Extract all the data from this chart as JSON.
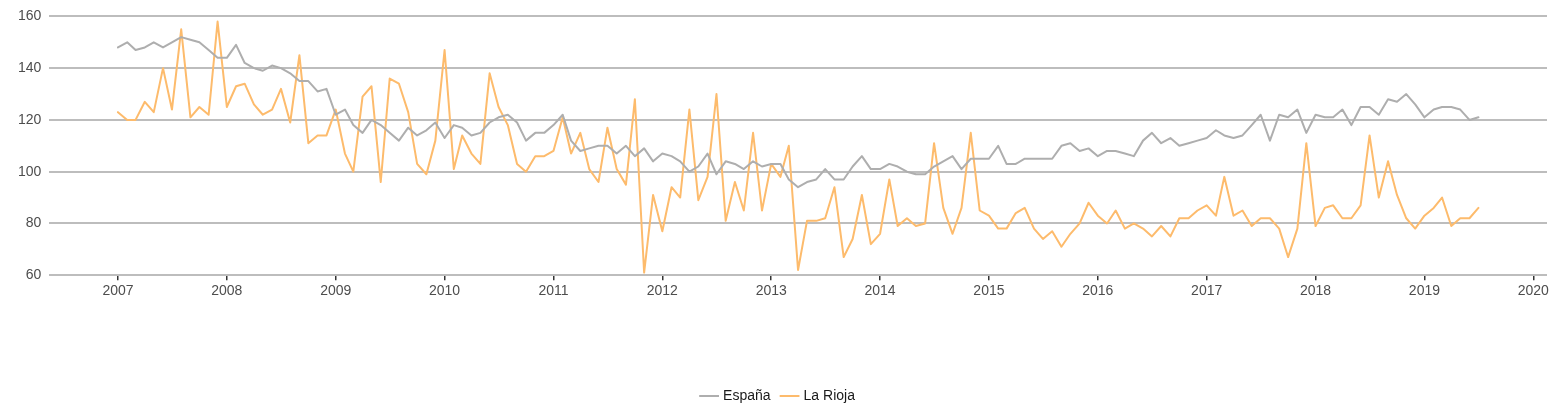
{
  "chart_data": {
    "type": "line",
    "x": [
      "2007-01",
      "2007-02",
      "2007-03",
      "2007-04",
      "2007-05",
      "2007-06",
      "2007-07",
      "2007-08",
      "2007-09",
      "2007-10",
      "2007-11",
      "2007-12",
      "2008-01",
      "2008-02",
      "2008-03",
      "2008-04",
      "2008-05",
      "2008-06",
      "2008-07",
      "2008-08",
      "2008-09",
      "2008-10",
      "2008-11",
      "2008-12",
      "2009-01",
      "2009-02",
      "2009-03",
      "2009-04",
      "2009-05",
      "2009-06",
      "2009-07",
      "2009-08",
      "2009-09",
      "2009-10",
      "2009-11",
      "2009-12",
      "2010-01",
      "2010-02",
      "2010-03",
      "2010-04",
      "2010-05",
      "2010-06",
      "2010-07",
      "2010-08",
      "2010-09",
      "2010-10",
      "2010-11",
      "2010-12",
      "2011-01",
      "2011-02",
      "2011-03",
      "2011-04",
      "2011-05",
      "2011-06",
      "2011-07",
      "2011-08",
      "2011-09",
      "2011-10",
      "2011-11",
      "2011-12",
      "2012-01",
      "2012-02",
      "2012-03",
      "2012-04",
      "2012-05",
      "2012-06",
      "2012-07",
      "2012-08",
      "2012-09",
      "2012-10",
      "2012-11",
      "2012-12",
      "2013-01",
      "2013-02",
      "2013-03",
      "2013-04",
      "2013-05",
      "2013-06",
      "2013-07",
      "2013-08",
      "2013-09",
      "2013-10",
      "2013-11",
      "2013-12",
      "2014-01",
      "2014-02",
      "2014-03",
      "2014-04",
      "2014-05",
      "2014-06",
      "2014-07",
      "2014-08",
      "2014-09",
      "2014-10",
      "2014-11",
      "2014-12",
      "2015-01",
      "2015-02",
      "2015-03",
      "2015-04",
      "2015-05",
      "2015-06",
      "2015-07",
      "2015-08",
      "2015-09",
      "2015-10",
      "2015-11",
      "2015-12",
      "2016-01",
      "2016-02",
      "2016-03",
      "2016-04",
      "2016-05",
      "2016-06",
      "2016-07",
      "2016-08",
      "2016-09",
      "2016-10",
      "2016-11",
      "2016-12",
      "2017-01",
      "2017-02",
      "2017-03",
      "2017-04",
      "2017-05",
      "2017-06",
      "2017-07",
      "2017-08",
      "2017-09",
      "2017-10",
      "2017-11",
      "2017-12",
      "2018-01",
      "2018-02",
      "2018-03",
      "2018-04",
      "2018-05",
      "2018-06",
      "2018-07",
      "2018-08",
      "2018-09",
      "2018-10",
      "2018-11",
      "2018-12",
      "2019-01",
      "2019-02",
      "2019-03",
      "2019-04",
      "2019-05",
      "2019-06",
      "2019-07"
    ],
    "series": [
      {
        "name": "España",
        "color": "#aeaeae",
        "values": [
          148,
          150,
          147,
          148,
          150,
          148,
          150,
          152,
          151,
          150,
          147,
          144,
          144,
          149,
          142,
          140,
          139,
          141,
          140,
          138,
          135,
          135,
          131,
          132,
          122,
          124,
          118,
          115,
          120,
          118,
          115,
          112,
          117,
          114,
          116,
          119,
          113,
          118,
          117,
          114,
          115,
          119,
          121,
          122,
          119,
          112,
          115,
          115,
          118,
          122,
          112,
          108,
          109,
          110,
          110,
          107,
          110,
          106,
          109,
          104,
          107,
          106,
          104,
          100,
          102,
          107,
          99,
          104,
          103,
          101,
          104,
          102,
          103,
          103,
          97,
          94,
          96,
          97,
          101,
          97,
          97,
          102,
          106,
          101,
          101,
          103,
          102,
          100,
          99,
          99,
          102,
          104,
          106,
          101,
          105,
          105,
          105,
          110,
          103,
          103,
          105,
          105,
          105,
          105,
          110,
          111,
          108,
          109,
          106,
          108,
          108,
          107,
          106,
          112,
          115,
          111,
          113,
          110,
          111,
          112,
          113,
          116,
          114,
          113,
          114,
          118,
          122,
          112,
          122,
          121,
          124,
          115,
          122,
          121,
          121,
          124,
          118,
          125,
          125,
          122,
          128,
          127,
          130,
          126,
          121,
          124,
          125,
          125,
          124,
          120,
          121
        ]
      },
      {
        "name": "La Rioja",
        "color": "#fdbb6c",
        "values": [
          123,
          120,
          120,
          127,
          123,
          140,
          124,
          155,
          121,
          125,
          122,
          158,
          125,
          133,
          134,
          126,
          122,
          124,
          132,
          119,
          145,
          111,
          114,
          114,
          124,
          107,
          100,
          129,
          133,
          96,
          136,
          134,
          123,
          103,
          99,
          112,
          147,
          101,
          114,
          107,
          103,
          138,
          125,
          118,
          103,
          100,
          106,
          106,
          108,
          121,
          107,
          115,
          101,
          96,
          117,
          101,
          95,
          128,
          61,
          91,
          77,
          94,
          90,
          124,
          89,
          98,
          130,
          81,
          96,
          85,
          115,
          85,
          103,
          98,
          110,
          62,
          81,
          81,
          82,
          94,
          67,
          74,
          91,
          72,
          76,
          97,
          79,
          82,
          79,
          80,
          111,
          86,
          76,
          86,
          115,
          85,
          83,
          78,
          78,
          84,
          86,
          78,
          74,
          77,
          71,
          76,
          80,
          88,
          83,
          80,
          85,
          78,
          80,
          78,
          75,
          79,
          75,
          82,
          82,
          85,
          87,
          83,
          98,
          83,
          85,
          79,
          82,
          82,
          78,
          67,
          78,
          111,
          79,
          86,
          87,
          82,
          82,
          87,
          114,
          90,
          104,
          91,
          82,
          78,
          83,
          86,
          90,
          79,
          82,
          82,
          86
        ]
      }
    ],
    "xlim": [
      "2006-05-16",
      "2020-02-16"
    ],
    "xticks": [
      "2007",
      "2008",
      "2009",
      "2010",
      "2011",
      "2012",
      "2013",
      "2014",
      "2015",
      "2016",
      "2017",
      "2018",
      "2019",
      "2020"
    ],
    "ylim": [
      60,
      160
    ],
    "yticks": [
      60,
      80,
      100,
      120,
      140,
      160
    ],
    "grid": "y",
    "legend": "bottom",
    "marker": "none",
    "line_style": "solid"
  }
}
